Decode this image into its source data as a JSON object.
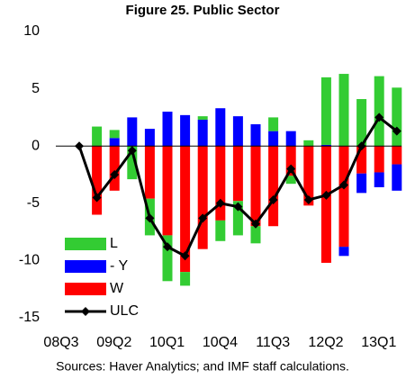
{
  "chart_data": {
    "type": "bar",
    "title": "Figure 25. Public Sector",
    "note": "Sources: Haver Analytics; and IMF staff calculations.",
    "categories": [
      "08Q3",
      null,
      null,
      "09Q2",
      null,
      null,
      "10Q1",
      null,
      null,
      "10Q4",
      null,
      null,
      "11Q3",
      null,
      null,
      "12Q2",
      null,
      null,
      "13Q1"
    ],
    "series": [
      {
        "name": "L",
        "color": "#33cc33",
        "values": [
          0,
          1.7,
          0.7,
          -2.9,
          -3.2,
          -4.0,
          -1.2,
          0.3,
          -1.8,
          -3.0,
          -1.5,
          1.2,
          -0.7,
          0.5,
          5.9,
          6.3,
          4.1,
          6.1,
          5.1
        ]
      },
      {
        "name": "- Y",
        "color": "#0000ff",
        "values": [
          0,
          0,
          0.7,
          2.5,
          1.5,
          3.0,
          2.7,
          2.3,
          3.3,
          2.6,
          1.9,
          1.3,
          1.3,
          0,
          0.1,
          -0.8,
          -1.7,
          -1.3,
          -2.3
        ]
      },
      {
        "name": "W",
        "color": "#ff0000",
        "values": [
          0,
          -6.0,
          -3.9,
          0,
          -4.6,
          -7.8,
          -11.0,
          -9.0,
          -6.5,
          -4.8,
          -7.0,
          -7.0,
          -2.6,
          -5.2,
          -10.2,
          -8.8,
          -2.4,
          -2.3,
          -1.6
        ]
      },
      {
        "name": "ULC",
        "color": "#000000",
        "type": "line",
        "values": [
          0,
          -4.5,
          -2.5,
          -0.4,
          -6.3,
          -8.8,
          -9.6,
          -6.3,
          -5.0,
          -5.3,
          -6.8,
          -4.7,
          -2.0,
          -4.7,
          -4.3,
          -3.4,
          0,
          2.5,
          1.3
        ]
      }
    ],
    "ylim": [
      -15,
      10
    ],
    "yticks": [
      -15,
      -10,
      -5,
      0,
      5,
      10
    ],
    "grid": false,
    "legend": "lower left"
  }
}
